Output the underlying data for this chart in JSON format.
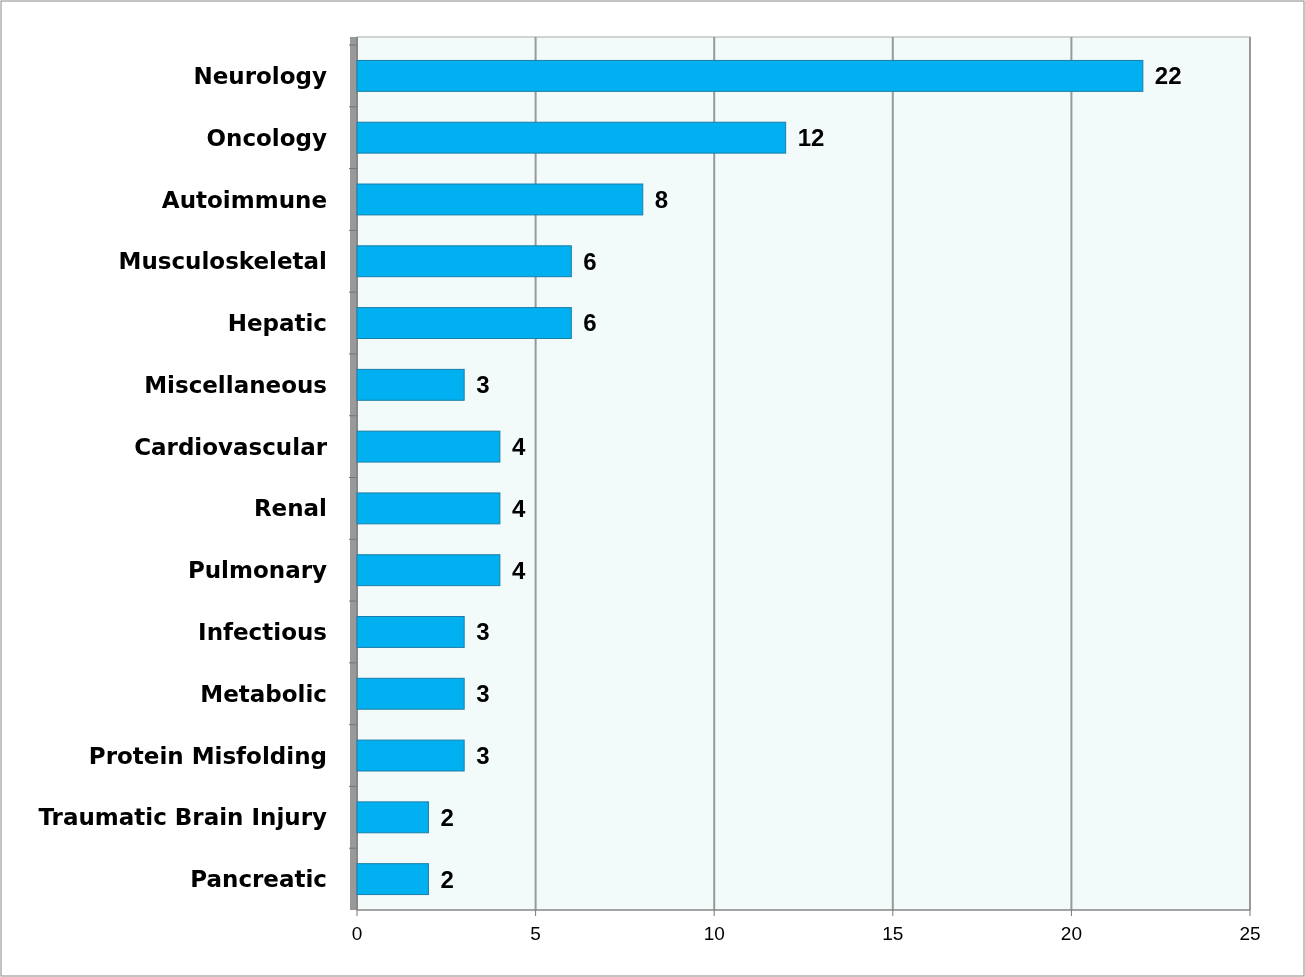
{
  "chart_data": {
    "type": "bar",
    "orientation": "horizontal",
    "categories": [
      "Neurology",
      "Oncology",
      "Autoimmune",
      "Musculoskeletal",
      "Hepatic",
      "Miscellaneous",
      "Cardiovascular",
      "Renal",
      "Pulmonary",
      "Infectious",
      "Metabolic",
      "Protein Misfolding",
      "Traumatic Brain Injury",
      "Pancreatic"
    ],
    "values": [
      22,
      12,
      8,
      6,
      6,
      3,
      4,
      4,
      4,
      3,
      3,
      3,
      2,
      2
    ],
    "color": "#00b0f0",
    "xlim": [
      0,
      25
    ],
    "xticks": [
      0,
      5,
      10,
      15,
      20,
      25
    ],
    "grid": "x",
    "data_labels": true
  }
}
